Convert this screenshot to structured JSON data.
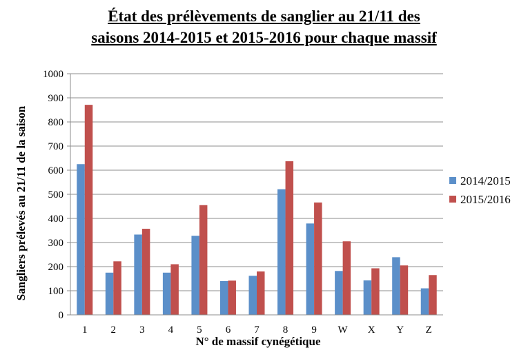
{
  "chart_data": {
    "type": "bar",
    "title_line1": "État des prélèvements de sanglier au 21/11 des",
    "title_line2": "saisons 2014-2015 et 2015-2016 pour chaque massif",
    "xlabel": "N° de massif cynégétique",
    "ylabel": "Sangliers prélevés au 21/11 de la saison",
    "categories": [
      "1",
      "2",
      "3",
      "4",
      "5",
      "6",
      "7",
      "8",
      "9",
      "W",
      "X",
      "Y",
      "Z"
    ],
    "series": [
      {
        "name": "2014/2015",
        "color": "#5b8fc9",
        "values": [
          625,
          175,
          333,
          175,
          328,
          140,
          162,
          521,
          379,
          182,
          143,
          239,
          110
        ]
      },
      {
        "name": "2015/2016",
        "color": "#c0504d",
        "values": [
          871,
          222,
          357,
          210,
          455,
          142,
          180,
          637,
          466,
          305,
          193,
          205,
          165
        ]
      }
    ],
    "ylim": [
      0,
      1000
    ],
    "yticks": [
      "0",
      "100",
      "200",
      "300",
      "400",
      "500",
      "600",
      "700",
      "800",
      "900",
      "1000"
    ],
    "grid": true,
    "legend_position": "right"
  }
}
